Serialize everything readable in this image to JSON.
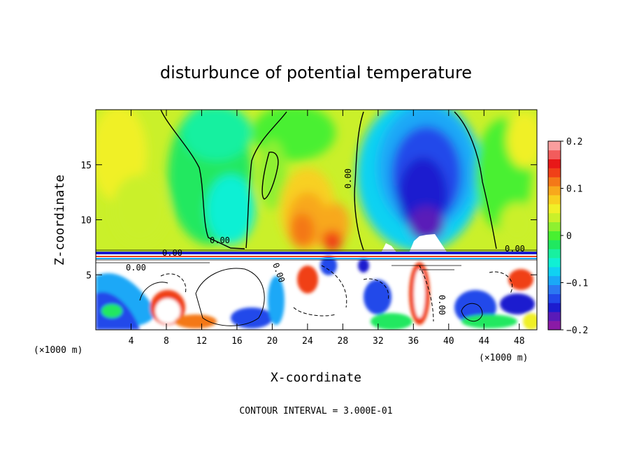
{
  "chart_data": {
    "type": "heatmap",
    "title": "disturbunce of potential temperature",
    "xlabel": "X-coordinate",
    "ylabel": "Z-coordinate",
    "x_unit": "(×1000 m)",
    "z_unit": "(×1000 m)",
    "xlim": [
      0,
      50
    ],
    "zlim": [
      0,
      20
    ],
    "x_ticks": [
      4,
      8,
      12,
      16,
      20,
      24,
      28,
      32,
      36,
      40,
      44,
      48
    ],
    "z_ticks": [
      5,
      10,
      15
    ],
    "colorbar": {
      "range": [
        -0.2,
        0.2
      ],
      "tick_values": [
        0.2,
        0.1,
        0,
        -0.1,
        -0.2
      ],
      "tick_labels": [
        "0.2",
        "0.1",
        "0",
        "−0.1",
        "−0.2"
      ],
      "colors": [
        "#8a1aa6",
        "#5a1ab8",
        "#1c1ccf",
        "#2248ea",
        "#2b78f2",
        "#1aa8f7",
        "#10d2f2",
        "#10f0d4",
        "#18f0a0",
        "#20e860",
        "#48f030",
        "#8ef030",
        "#caf02a",
        "#f0f028",
        "#f8d020",
        "#f8a81c",
        "#f47818",
        "#f04018",
        "#e81818",
        "#f25c5c",
        "#fa9e9e"
      ]
    },
    "contour_interval_label": "CONTOUR INTERVAL = 3.000E-01",
    "contour_labels": [
      "0.00",
      "0.00",
      "0.00",
      "0.00",
      "0.00",
      "0.00",
      "0.00"
    ]
  }
}
